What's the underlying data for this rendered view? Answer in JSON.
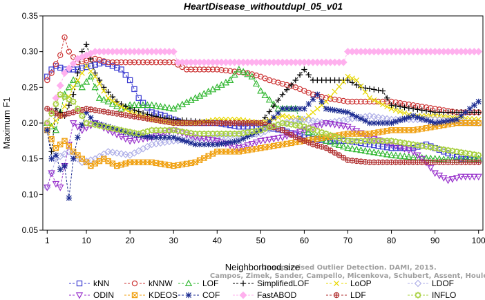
{
  "chart_data": {
    "type": "line",
    "title": "HeartDisease_withoutdupl_05_v01",
    "xlabel": "Neighborhood size",
    "ylabel": "Maximum F1",
    "xlim": [
      0,
      101
    ],
    "ylim": [
      0.05,
      0.35
    ],
    "xticks": [
      1,
      10,
      20,
      30,
      40,
      50,
      60,
      70,
      80,
      90,
      100
    ],
    "yticks": [
      0.05,
      0.1,
      0.15,
      0.2,
      0.25,
      0.3,
      0.35
    ],
    "grid": false,
    "legend_position": "bottom",
    "watermark": [
      "Campos, Zimek, Sander, Campello, Micenkova, Schubert, Assent, Houle",
      "Unsupervised Outlier Detection. DAMI, 2015."
    ],
    "series": [
      {
        "name": "kNN",
        "color": "#3a3ad0",
        "marker": "square",
        "keypoints": [
          [
            1,
            0.265
          ],
          [
            2,
            0.275
          ],
          [
            3,
            0.28
          ],
          [
            5,
            0.275
          ],
          [
            8,
            0.275
          ],
          [
            14,
            0.285
          ],
          [
            18,
            0.275
          ],
          [
            20,
            0.26
          ],
          [
            22,
            0.235
          ],
          [
            25,
            0.215
          ],
          [
            28,
            0.21
          ],
          [
            32,
            0.2
          ],
          [
            40,
            0.2
          ],
          [
            45,
            0.195
          ],
          [
            50,
            0.195
          ],
          [
            55,
            0.19
          ],
          [
            60,
            0.18
          ],
          [
            65,
            0.175
          ],
          [
            70,
            0.175
          ],
          [
            75,
            0.17
          ],
          [
            80,
            0.165
          ],
          [
            85,
            0.165
          ],
          [
            88,
            0.17
          ],
          [
            92,
            0.16
          ],
          [
            96,
            0.15
          ],
          [
            100,
            0.148
          ]
        ]
      },
      {
        "name": "kNNW",
        "color": "#cc3333",
        "marker": "circle",
        "keypoints": [
          [
            1,
            0.26
          ],
          [
            2,
            0.27
          ],
          [
            4,
            0.295
          ],
          [
            5,
            0.32
          ],
          [
            6,
            0.3
          ],
          [
            8,
            0.285
          ],
          [
            12,
            0.29
          ],
          [
            15,
            0.285
          ],
          [
            20,
            0.285
          ],
          [
            25,
            0.285
          ],
          [
            30,
            0.285
          ],
          [
            33,
            0.275
          ],
          [
            40,
            0.275
          ],
          [
            47,
            0.27
          ],
          [
            50,
            0.265
          ],
          [
            52,
            0.26
          ],
          [
            55,
            0.255
          ],
          [
            58,
            0.25
          ],
          [
            62,
            0.24
          ],
          [
            65,
            0.235
          ],
          [
            70,
            0.23
          ],
          [
            80,
            0.23
          ],
          [
            90,
            0.22
          ],
          [
            95,
            0.215
          ],
          [
            100,
            0.215
          ]
        ]
      },
      {
        "name": "LOF",
        "color": "#33b833",
        "marker": "triangle-up",
        "keypoints": [
          [
            1,
            0.2
          ],
          [
            3,
            0.19
          ],
          [
            5,
            0.24
          ],
          [
            7,
            0.26
          ],
          [
            9,
            0.25
          ],
          [
            11,
            0.265
          ],
          [
            13,
            0.235
          ],
          [
            15,
            0.23
          ],
          [
            18,
            0.22
          ],
          [
            20,
            0.225
          ],
          [
            25,
            0.225
          ],
          [
            30,
            0.22
          ],
          [
            35,
            0.235
          ],
          [
            40,
            0.25
          ],
          [
            43,
            0.26
          ],
          [
            45,
            0.275
          ],
          [
            48,
            0.265
          ],
          [
            50,
            0.245
          ],
          [
            54,
            0.22
          ],
          [
            58,
            0.22
          ],
          [
            60,
            0.19
          ],
          [
            65,
            0.175
          ],
          [
            70,
            0.165
          ],
          [
            75,
            0.16
          ],
          [
            80,
            0.155
          ],
          [
            85,
            0.152
          ],
          [
            90,
            0.15
          ],
          [
            95,
            0.148
          ],
          [
            100,
            0.15
          ]
        ]
      },
      {
        "name": "SimplifiedLOF",
        "color": "#000000",
        "marker": "plus",
        "keypoints": [
          [
            1,
            0.19
          ],
          [
            2,
            0.16
          ],
          [
            3,
            0.22
          ],
          [
            5,
            0.21
          ],
          [
            7,
            0.24
          ],
          [
            9,
            0.3
          ],
          [
            10,
            0.31
          ],
          [
            12,
            0.27
          ],
          [
            14,
            0.25
          ],
          [
            17,
            0.23
          ],
          [
            20,
            0.22
          ],
          [
            25,
            0.21
          ],
          [
            30,
            0.205
          ],
          [
            40,
            0.2
          ],
          [
            50,
            0.2
          ],
          [
            55,
            0.24
          ],
          [
            58,
            0.26
          ],
          [
            60,
            0.275
          ],
          [
            62,
            0.26
          ],
          [
            70,
            0.26
          ],
          [
            73,
            0.25
          ],
          [
            78,
            0.245
          ],
          [
            80,
            0.225
          ],
          [
            85,
            0.22
          ],
          [
            90,
            0.215
          ],
          [
            100,
            0.215
          ]
        ]
      },
      {
        "name": "LoOP",
        "color": "#e8d800",
        "marker": "cross",
        "keypoints": [
          [
            1,
            0.19
          ],
          [
            4,
            0.21
          ],
          [
            7,
            0.25
          ],
          [
            10,
            0.28
          ],
          [
            12,
            0.265
          ],
          [
            15,
            0.235
          ],
          [
            20,
            0.215
          ],
          [
            25,
            0.205
          ],
          [
            30,
            0.2
          ],
          [
            35,
            0.2
          ],
          [
            40,
            0.205
          ],
          [
            45,
            0.205
          ],
          [
            50,
            0.2
          ],
          [
            55,
            0.21
          ],
          [
            60,
            0.205
          ],
          [
            65,
            0.23
          ],
          [
            70,
            0.265
          ],
          [
            72,
            0.26
          ],
          [
            75,
            0.235
          ],
          [
            80,
            0.22
          ],
          [
            85,
            0.21
          ],
          [
            90,
            0.21
          ],
          [
            100,
            0.205
          ]
        ]
      },
      {
        "name": "LDOF",
        "color": "#b0b0e8",
        "marker": "diamond",
        "keypoints": [
          [
            1,
            0.11
          ],
          [
            3,
            0.15
          ],
          [
            6,
            0.16
          ],
          [
            9,
            0.145
          ],
          [
            12,
            0.15
          ],
          [
            15,
            0.16
          ],
          [
            20,
            0.155
          ],
          [
            25,
            0.17
          ],
          [
            30,
            0.175
          ],
          [
            40,
            0.18
          ],
          [
            50,
            0.185
          ],
          [
            55,
            0.2
          ],
          [
            60,
            0.205
          ],
          [
            65,
            0.2
          ],
          [
            70,
            0.205
          ],
          [
            75,
            0.21
          ],
          [
            80,
            0.205
          ],
          [
            90,
            0.205
          ],
          [
            100,
            0.2
          ]
        ]
      },
      {
        "name": "ODIN",
        "color": "#9933cc",
        "marker": "triangle-down",
        "keypoints": [
          [
            1,
            0.11
          ],
          [
            2,
            0.13
          ],
          [
            3,
            0.115
          ],
          [
            4,
            0.11
          ],
          [
            5,
            0.14
          ],
          [
            7,
            0.2
          ],
          [
            9,
            0.19
          ],
          [
            12,
            0.2
          ],
          [
            15,
            0.19
          ],
          [
            20,
            0.175
          ],
          [
            25,
            0.18
          ],
          [
            30,
            0.19
          ],
          [
            35,
            0.18
          ],
          [
            40,
            0.175
          ],
          [
            45,
            0.165
          ],
          [
            50,
            0.175
          ],
          [
            55,
            0.18
          ],
          [
            60,
            0.19
          ],
          [
            65,
            0.2
          ],
          [
            70,
            0.195
          ],
          [
            75,
            0.18
          ],
          [
            80,
            0.17
          ],
          [
            85,
            0.16
          ],
          [
            88,
            0.145
          ],
          [
            90,
            0.13
          ],
          [
            93,
            0.12
          ],
          [
            96,
            0.125
          ],
          [
            100,
            0.125
          ]
        ]
      },
      {
        "name": "KDEOS",
        "color": "#f0a010",
        "marker": "square-x",
        "keypoints": [
          [
            1,
            0.19
          ],
          [
            3,
            0.165
          ],
          [
            5,
            0.175
          ],
          [
            7,
            0.16
          ],
          [
            9,
            0.15
          ],
          [
            11,
            0.14
          ],
          [
            14,
            0.15
          ],
          [
            17,
            0.14
          ],
          [
            20,
            0.145
          ],
          [
            25,
            0.145
          ],
          [
            30,
            0.14
          ],
          [
            35,
            0.145
          ],
          [
            40,
            0.16
          ],
          [
            45,
            0.16
          ],
          [
            50,
            0.165
          ],
          [
            55,
            0.17
          ],
          [
            60,
            0.175
          ],
          [
            65,
            0.18
          ],
          [
            70,
            0.185
          ],
          [
            75,
            0.185
          ],
          [
            80,
            0.19
          ],
          [
            85,
            0.19
          ],
          [
            90,
            0.195
          ],
          [
            95,
            0.2
          ],
          [
            100,
            0.2
          ]
        ]
      },
      {
        "name": "COF",
        "color": "#1a2a90",
        "marker": "asterisk",
        "keypoints": [
          [
            1,
            0.19
          ],
          [
            2,
            0.15
          ],
          [
            3,
            0.155
          ],
          [
            4,
            0.135
          ],
          [
            5,
            0.14
          ],
          [
            6,
            0.095
          ],
          [
            7,
            0.15
          ],
          [
            8,
            0.18
          ],
          [
            10,
            0.215
          ],
          [
            12,
            0.2
          ],
          [
            15,
            0.195
          ],
          [
            20,
            0.185
          ],
          [
            25,
            0.18
          ],
          [
            30,
            0.18
          ],
          [
            35,
            0.17
          ],
          [
            40,
            0.17
          ],
          [
            45,
            0.175
          ],
          [
            50,
            0.19
          ],
          [
            55,
            0.22
          ],
          [
            60,
            0.22
          ],
          [
            63,
            0.24
          ],
          [
            65,
            0.22
          ],
          [
            70,
            0.215
          ],
          [
            75,
            0.2
          ],
          [
            80,
            0.2
          ],
          [
            85,
            0.21
          ],
          [
            90,
            0.2
          ],
          [
            95,
            0.205
          ],
          [
            100,
            0.23
          ]
        ]
      },
      {
        "name": "FastABOD",
        "color": "#ffb0ee",
        "marker": "diamond-filled",
        "keypoints": [
          [
            1,
            0.2
          ],
          [
            5,
            0.27
          ],
          [
            8,
            0.29
          ],
          [
            12,
            0.3
          ],
          [
            14,
            0.3
          ],
          [
            30,
            0.3
          ],
          [
            31,
            0.285
          ],
          [
            50,
            0.285
          ],
          [
            69,
            0.285
          ],
          [
            70,
            0.3
          ],
          [
            100,
            0.3
          ]
        ]
      },
      {
        "name": "LDF",
        "color": "#b03030",
        "marker": "circle-plus",
        "keypoints": [
          [
            1,
            0.22
          ],
          [
            4,
            0.21
          ],
          [
            7,
            0.215
          ],
          [
            10,
            0.22
          ],
          [
            15,
            0.215
          ],
          [
            20,
            0.21
          ],
          [
            25,
            0.205
          ],
          [
            30,
            0.2
          ],
          [
            40,
            0.2
          ],
          [
            50,
            0.2
          ],
          [
            55,
            0.19
          ],
          [
            58,
            0.18
          ],
          [
            62,
            0.17
          ],
          [
            65,
            0.165
          ],
          [
            68,
            0.155
          ],
          [
            70,
            0.148
          ],
          [
            75,
            0.145
          ],
          [
            80,
            0.145
          ],
          [
            90,
            0.145
          ],
          [
            100,
            0.145
          ]
        ]
      },
      {
        "name": "INFLO",
        "color": "#a8d040",
        "marker": "star",
        "keypoints": [
          [
            1,
            0.2
          ],
          [
            4,
            0.24
          ],
          [
            7,
            0.23
          ],
          [
            10,
            0.2
          ],
          [
            14,
            0.195
          ],
          [
            18,
            0.19
          ],
          [
            22,
            0.185
          ],
          [
            25,
            0.19
          ],
          [
            30,
            0.19
          ],
          [
            35,
            0.185
          ],
          [
            40,
            0.185
          ],
          [
            45,
            0.185
          ],
          [
            50,
            0.19
          ],
          [
            55,
            0.2
          ],
          [
            60,
            0.195
          ],
          [
            65,
            0.185
          ],
          [
            70,
            0.175
          ],
          [
            75,
            0.175
          ],
          [
            80,
            0.175
          ],
          [
            85,
            0.17
          ],
          [
            90,
            0.165
          ],
          [
            95,
            0.16
          ],
          [
            100,
            0.155
          ]
        ]
      }
    ]
  }
}
